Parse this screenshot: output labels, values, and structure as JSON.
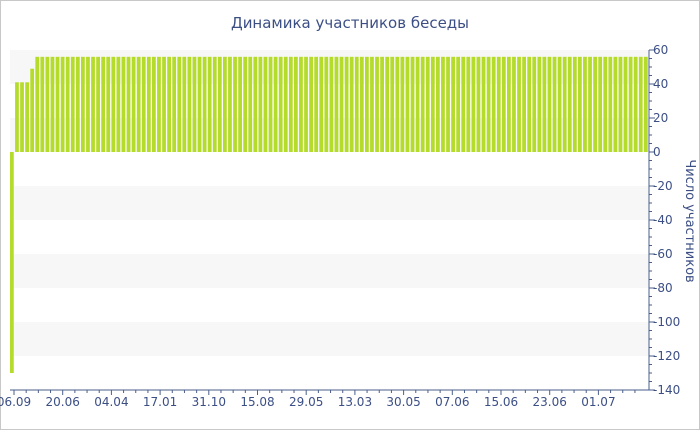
{
  "chart_data": {
    "type": "bar",
    "title": "Динамика участников беседы",
    "ylabel": "Число участников",
    "xlabel": "",
    "ylim": [
      -140,
      60
    ],
    "y_ticks": [
      60,
      40,
      20,
      0,
      -20,
      -40,
      -60,
      -80,
      -100,
      -120,
      -140
    ],
    "x_tick_labels": [
      "06.09",
      "20.06",
      "04.04",
      "17.01",
      "31.10",
      "15.08",
      "29.05",
      "13.03",
      "30.05",
      "07.06",
      "15.06",
      "23.06",
      "01.07"
    ],
    "grid": "alternating horizontal bands",
    "colors": {
      "bar": "#b5dc2b",
      "band": "#f7f7f7",
      "text": "#3c4f85",
      "axis": "#4a5f8c"
    },
    "values": [
      -130,
      41,
      41,
      41,
      49,
      56,
      56,
      56,
      56,
      56,
      56,
      56,
      56,
      56,
      56,
      56,
      56,
      56,
      56,
      56,
      56,
      56,
      56,
      56,
      56,
      56,
      56,
      56,
      56,
      56,
      56,
      56,
      56,
      56,
      56,
      56,
      56,
      56,
      56,
      56,
      56,
      56,
      56,
      56,
      56,
      56,
      56,
      56,
      56,
      56,
      56,
      56,
      56,
      56,
      56,
      56,
      56,
      56,
      56,
      56,
      56,
      56,
      56,
      56,
      56,
      56,
      56,
      56,
      56,
      56,
      56,
      56,
      56,
      56,
      56,
      56,
      56,
      56,
      56,
      56,
      56,
      56,
      56,
      56,
      56,
      56,
      56,
      56,
      56,
      56,
      56,
      56,
      56,
      56,
      56,
      56,
      56,
      56,
      56,
      56,
      56,
      56,
      56,
      56,
      56,
      56,
      56,
      56,
      56,
      56,
      56,
      56,
      56,
      56,
      56,
      56,
      56,
      56,
      56,
      56,
      56,
      56,
      56,
      56,
      56,
      56
    ]
  }
}
